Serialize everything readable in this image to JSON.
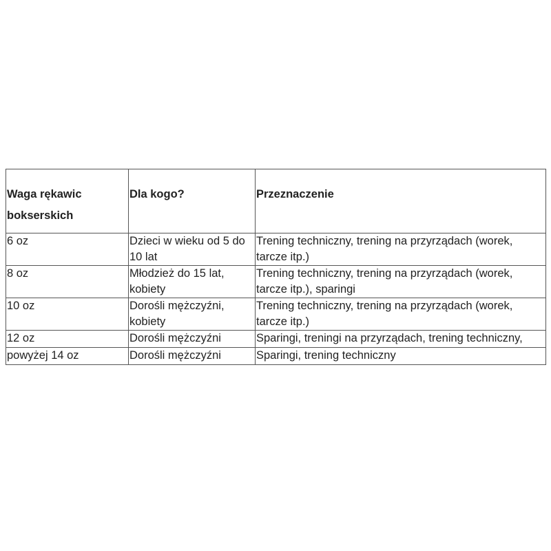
{
  "table": {
    "headers": [
      "Waga rękawic bokserskich",
      "Dla kogo?",
      "Przeznaczenie"
    ],
    "rows": [
      [
        "6 oz",
        "Dzieci w wieku od 5 do 10 lat",
        "Trening techniczny, trening na przyrządach (worek, tarcze itp.)"
      ],
      [
        "8 oz",
        "Młodzież do 15 lat, kobiety",
        "Trening techniczny, trening na przyrządach (worek, tarcze itp.), sparingi"
      ],
      [
        "10 oz",
        "Dorośli mężczyźni, kobiety",
        "Trening techniczny, trening na przyrządach (worek, tarcze itp.)"
      ],
      [
        "12 oz",
        "Dorośli mężczyźni",
        "Sparingi, treningi na przyrządach, trening techniczny,"
      ],
      [
        "powyżej 14 oz",
        "Dorośli mężczyźni",
        "Sparingi, trening techniczny"
      ]
    ]
  }
}
